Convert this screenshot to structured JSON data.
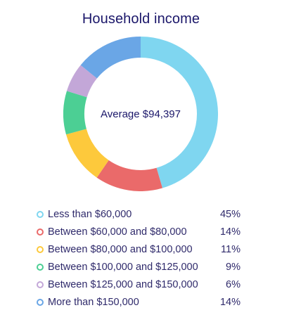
{
  "chart_data": {
    "type": "pie",
    "title": "Household income",
    "center_label": "Average $94,397",
    "categories": [
      "Less than $60,000",
      "Between $60,000 and $80,000",
      "Between $80,000 and $100,000",
      "Between $100,000 and $125,000",
      "Between $125,000 and $150,000",
      "More than $150,000"
    ],
    "values": [
      45,
      14,
      11,
      9,
      6,
      14
    ],
    "value_labels": [
      "45%",
      "14%",
      "11%",
      "9%",
      "6%",
      "14%"
    ],
    "colors": [
      "#7fd6f0",
      "#ea6a6a",
      "#fdc93c",
      "#4ccf94",
      "#c3a7d8",
      "#6aa6e6"
    ],
    "legend": "bottom"
  }
}
